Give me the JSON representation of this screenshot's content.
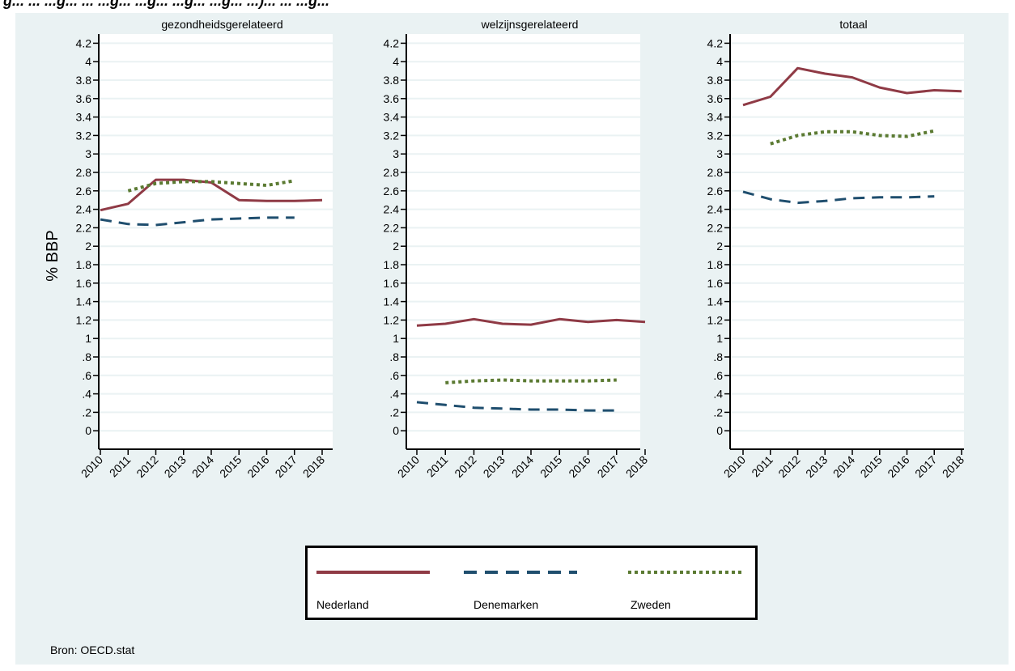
{
  "figure": {
    "title_fragment": "g... ... ...g... ... ...g... ...g... ...g... ...g... ...)... ... ...g...",
    "source_note": "Bron: OECD.stat"
  },
  "colors": {
    "background": "#eaf2f3",
    "plot_background": "#ffffff",
    "grid": "#eaf2f3",
    "nederland": "#8f3a45",
    "denemarken": "#1f4e6e",
    "zweden": "#5b7a32"
  },
  "chart_data": {
    "type": "line",
    "ylabel": "% BBP",
    "xlabel": "",
    "ylim": [
      -0.2,
      4.3
    ],
    "yticks": [
      {
        "value": 0,
        "label": "0"
      },
      {
        "value": 0.2,
        "label": ".2"
      },
      {
        "value": 0.4,
        "label": ".4"
      },
      {
        "value": 0.6,
        "label": ".6"
      },
      {
        "value": 0.8,
        "label": ".8"
      },
      {
        "value": 1.0,
        "label": "1"
      },
      {
        "value": 1.2,
        "label": "1.2"
      },
      {
        "value": 1.4,
        "label": "1.4"
      },
      {
        "value": 1.6,
        "label": "1.6"
      },
      {
        "value": 1.8,
        "label": "1.8"
      },
      {
        "value": 2.0,
        "label": "2"
      },
      {
        "value": 2.2,
        "label": "2.2"
      },
      {
        "value": 2.4,
        "label": "2.4"
      },
      {
        "value": 2.6,
        "label": "2.6"
      },
      {
        "value": 2.8,
        "label": "2.8"
      },
      {
        "value": 3.0,
        "label": "3"
      },
      {
        "value": 3.2,
        "label": "3.2"
      },
      {
        "value": 3.4,
        "label": "3.4"
      },
      {
        "value": 3.6,
        "label": "3.6"
      },
      {
        "value": 3.8,
        "label": "3.8"
      },
      {
        "value": 4.0,
        "label": "4"
      },
      {
        "value": 4.2,
        "label": "4.2"
      }
    ],
    "x": [
      "2010",
      "2011",
      "2012",
      "2013",
      "2014",
      "2015",
      "2016",
      "2017",
      "2018"
    ],
    "grid": true,
    "legend_position": "bottom",
    "legend": [
      {
        "name": "Nederland",
        "style": "solid",
        "color": "#8f3a45"
      },
      {
        "name": "Denemarken",
        "style": "dashed",
        "color": "#1f4e6e"
      },
      {
        "name": "Zweden",
        "style": "dotted",
        "color": "#5b7a32"
      }
    ],
    "panels": [
      {
        "title": "gezondheidsgerelateerd",
        "series": [
          {
            "name": "Nederland",
            "values": [
              2.39,
              2.46,
              2.72,
              2.72,
              2.69,
              2.5,
              2.49,
              2.49,
              2.5
            ]
          },
          {
            "name": "Denemarken",
            "values": [
              2.29,
              2.24,
              2.23,
              2.26,
              2.29,
              2.3,
              2.31,
              2.31,
              null
            ]
          },
          {
            "name": "Zweden",
            "values": [
              null,
              2.6,
              2.68,
              2.7,
              2.7,
              2.68,
              2.66,
              2.71,
              null
            ]
          }
        ]
      },
      {
        "title": "welzijnsgerelateerd",
        "series": [
          {
            "name": "Nederland",
            "values": [
              1.14,
              1.16,
              1.21,
              1.16,
              1.15,
              1.21,
              1.18,
              1.2,
              1.18
            ]
          },
          {
            "name": "Denemarken",
            "values": [
              0.31,
              0.28,
              0.25,
              0.24,
              0.23,
              0.23,
              0.22,
              0.22,
              null
            ]
          },
          {
            "name": "Zweden",
            "values": [
              null,
              0.52,
              0.54,
              0.55,
              0.54,
              0.54,
              0.54,
              0.55,
              null
            ]
          }
        ]
      },
      {
        "title": "totaal",
        "series": [
          {
            "name": "Nederland",
            "values": [
              3.53,
              3.62,
              3.93,
              3.87,
              3.83,
              3.72,
              3.66,
              3.69,
              3.68
            ]
          },
          {
            "name": "Denemarken",
            "values": [
              2.59,
              2.51,
              2.47,
              2.49,
              2.52,
              2.53,
              2.53,
              2.54,
              null
            ]
          },
          {
            "name": "Zweden",
            "values": [
              null,
              3.11,
              3.2,
              3.24,
              3.24,
              3.2,
              3.19,
              3.25,
              null
            ]
          }
        ]
      }
    ]
  }
}
